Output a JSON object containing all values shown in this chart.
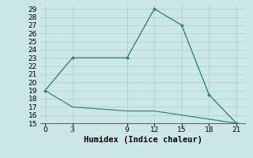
{
  "xlabel": "Humidex (Indice chaleur)",
  "line1_x": [
    0,
    3,
    9,
    12,
    15,
    18,
    21
  ],
  "line1_y": [
    19,
    23,
    23,
    29,
    27,
    18.5,
    15
  ],
  "line2_x": [
    0,
    3,
    9,
    12,
    15,
    18,
    21
  ],
  "line2_y": [
    19,
    17,
    16.5,
    16.5,
    16,
    15.5,
    15
  ],
  "line_color": "#2e8b75",
  "bg_color": "#cce8e4",
  "grid_color": "#b0d4d0",
  "xlim": [
    -0.5,
    22
  ],
  "ylim": [
    15,
    29.5
  ],
  "xticks": [
    0,
    3,
    9,
    12,
    15,
    18,
    21
  ],
  "yticks": [
    15,
    16,
    17,
    18,
    19,
    20,
    21,
    22,
    23,
    24,
    25,
    26,
    27,
    28,
    29
  ],
  "tick_fontsize": 6.5,
  "xlabel_fontsize": 7.5
}
